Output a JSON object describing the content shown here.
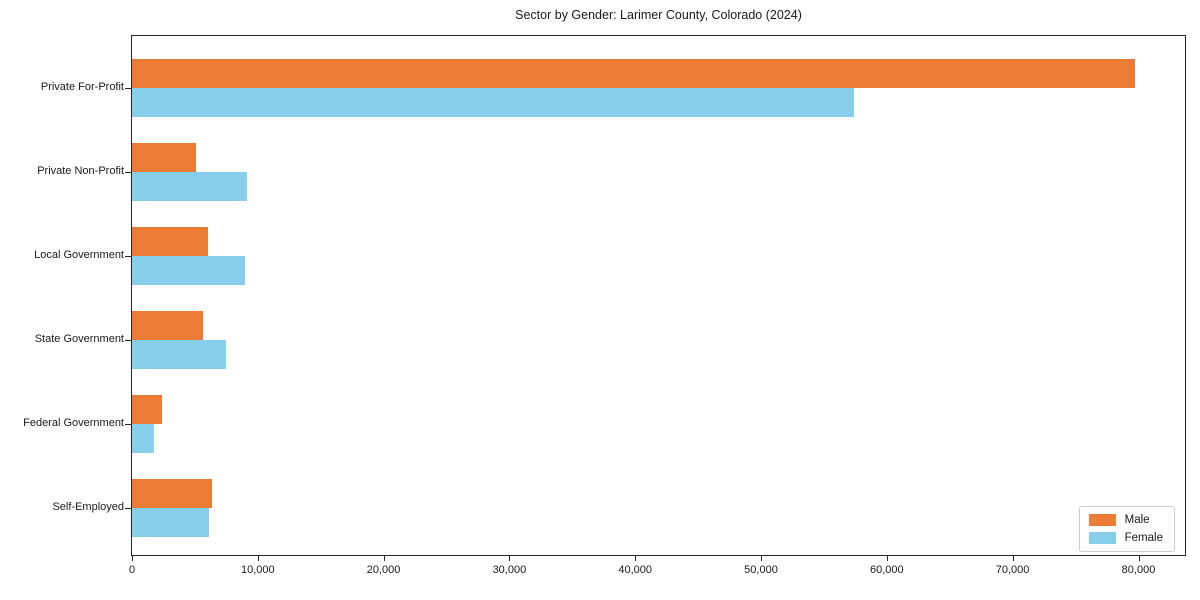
{
  "figure": {
    "background": "#ffffff",
    "frame_color": "#262626",
    "text_color": "#1a1a1a"
  },
  "chart_data": {
    "type": "bar",
    "orientation": "horizontal",
    "title": "Sector by Gender: Larimer County, Colorado (2024)",
    "xlabel": "",
    "ylabel": "",
    "grid": false,
    "categories": [
      "Private For-Profit",
      "Private Non-Profit",
      "Local Government",
      "State Government",
      "Federal Government",
      "Self-Employed"
    ],
    "series": [
      {
        "name": "Male",
        "color": "#EC7B35",
        "values": [
          79700,
          5100,
          6000,
          5600,
          2400,
          6350
        ]
      },
      {
        "name": "Female",
        "color": "#87CEEB",
        "values": [
          57400,
          9100,
          9000,
          7500,
          1750,
          6100
        ]
      }
    ],
    "xlim": [
      0,
      83700
    ],
    "x_ticks": [
      0,
      10000,
      20000,
      30000,
      40000,
      50000,
      60000,
      70000,
      80000
    ],
    "x_tick_labels": [
      "0",
      "10,000",
      "20,000",
      "30,000",
      "40,000",
      "50,000",
      "60,000",
      "70,000",
      "80,000"
    ],
    "legend": {
      "position": "lower right",
      "entries": [
        "Male",
        "Female"
      ]
    }
  }
}
